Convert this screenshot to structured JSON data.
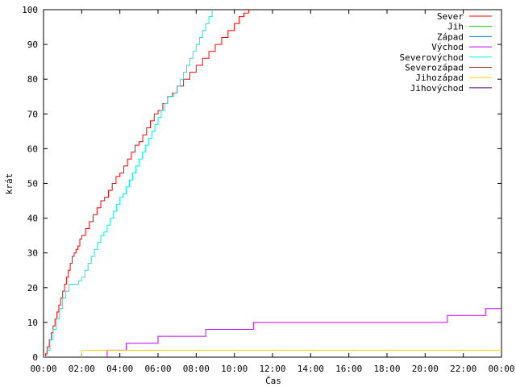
{
  "chart_data": {
    "type": "line",
    "xlabel": "Čas",
    "ylabel": "krát",
    "ylim": [
      0,
      100
    ],
    "xlim_hours": [
      0,
      24
    ],
    "x_tick_labels": [
      "00:00",
      "02:00",
      "04:00",
      "06:00",
      "08:00",
      "10:00",
      "12:00",
      "14:00",
      "16:00",
      "18:00",
      "20:00",
      "22:00",
      "00:00"
    ],
    "y_tick_labels": [
      "0",
      "10",
      "20",
      "30",
      "40",
      "50",
      "60",
      "70",
      "80",
      "90",
      "100"
    ],
    "grid": false,
    "legend_position": "top-right",
    "series": [
      {
        "name": "Sever",
        "color": "#ff0000",
        "points": [
          [
            "00:00",
            0
          ],
          [
            "00:06",
            1
          ],
          [
            "00:12",
            3
          ],
          [
            "00:18",
            5
          ],
          [
            "00:24",
            7
          ],
          [
            "00:30",
            9
          ],
          [
            "00:36",
            11
          ],
          [
            "00:42",
            13
          ],
          [
            "00:48",
            15
          ],
          [
            "00:54",
            17
          ],
          [
            "01:00",
            19
          ],
          [
            "01:06",
            21
          ],
          [
            "01:12",
            23
          ],
          [
            "01:18",
            25
          ],
          [
            "01:24",
            27
          ],
          [
            "01:30",
            29
          ],
          [
            "01:36",
            30
          ],
          [
            "01:42",
            31
          ],
          [
            "01:48",
            32
          ],
          [
            "01:54",
            34
          ],
          [
            "02:00",
            35
          ],
          [
            "02:12",
            37
          ],
          [
            "02:24",
            39
          ],
          [
            "02:36",
            41
          ],
          [
            "02:48",
            43
          ],
          [
            "03:00",
            45
          ],
          [
            "03:12",
            46
          ],
          [
            "03:24",
            48
          ],
          [
            "03:36",
            50
          ],
          [
            "03:48",
            52
          ],
          [
            "04:00",
            53
          ],
          [
            "04:12",
            55
          ],
          [
            "04:24",
            57
          ],
          [
            "04:36",
            59
          ],
          [
            "04:48",
            61
          ],
          [
            "05:00",
            62
          ],
          [
            "05:12",
            64
          ],
          [
            "05:24",
            66
          ],
          [
            "05:36",
            68
          ],
          [
            "05:48",
            70
          ],
          [
            "06:00",
            71
          ],
          [
            "06:15",
            73
          ],
          [
            "06:30",
            75
          ],
          [
            "06:45",
            76
          ],
          [
            "07:00",
            78
          ],
          [
            "07:20",
            80
          ],
          [
            "07:40",
            82
          ],
          [
            "08:00",
            84
          ],
          [
            "08:20",
            86
          ],
          [
            "08:40",
            88
          ],
          [
            "09:00",
            90
          ],
          [
            "09:20",
            92
          ],
          [
            "09:40",
            94
          ],
          [
            "10:00",
            96
          ],
          [
            "10:15",
            98
          ],
          [
            "10:30",
            99
          ],
          [
            "10:45",
            100
          ]
        ]
      },
      {
        "name": "Jih",
        "color": "#00c000",
        "points": []
      },
      {
        "name": "Západ",
        "color": "#0080ff",
        "points": []
      },
      {
        "name": "Východ",
        "color": "#c000ff",
        "points": [
          [
            "03:20",
            0
          ],
          [
            "03:20",
            2
          ],
          [
            "04:20",
            2
          ],
          [
            "04:20",
            4
          ],
          [
            "06:00",
            4
          ],
          [
            "06:00",
            6
          ],
          [
            "08:30",
            6
          ],
          [
            "08:30",
            8
          ],
          [
            "11:00",
            8
          ],
          [
            "11:00",
            10
          ],
          [
            "21:10",
            10
          ],
          [
            "21:10",
            12
          ],
          [
            "23:10",
            12
          ],
          [
            "23:10",
            14
          ],
          [
            "24:00",
            14
          ]
        ]
      },
      {
        "name": "Severovýchod",
        "color": "#00eeee",
        "points": [
          [
            "00:00",
            0
          ],
          [
            "00:10",
            2
          ],
          [
            "00:20",
            5
          ],
          [
            "00:30",
            8
          ],
          [
            "00:40",
            11
          ],
          [
            "00:50",
            14
          ],
          [
            "01:00",
            17
          ],
          [
            "01:10",
            19
          ],
          [
            "01:20",
            21
          ],
          [
            "01:30",
            21
          ],
          [
            "01:40",
            21
          ],
          [
            "01:50",
            22
          ],
          [
            "02:00",
            23
          ],
          [
            "02:10",
            25
          ],
          [
            "02:20",
            27
          ],
          [
            "02:30",
            29
          ],
          [
            "02:40",
            31
          ],
          [
            "02:50",
            33
          ],
          [
            "03:00",
            35
          ],
          [
            "03:10",
            36
          ],
          [
            "03:20",
            38
          ],
          [
            "03:30",
            40
          ],
          [
            "03:40",
            42
          ],
          [
            "03:50",
            44
          ],
          [
            "04:00",
            46
          ],
          [
            "04:10",
            47
          ],
          [
            "04:20",
            49
          ],
          [
            "04:30",
            51
          ],
          [
            "04:40",
            53
          ],
          [
            "04:50",
            55
          ],
          [
            "05:00",
            57
          ],
          [
            "05:10",
            59
          ],
          [
            "05:20",
            61
          ],
          [
            "05:30",
            63
          ],
          [
            "05:40",
            65
          ],
          [
            "05:50",
            67
          ],
          [
            "06:00",
            69
          ],
          [
            "06:10",
            71
          ],
          [
            "06:20",
            73
          ],
          [
            "06:30",
            75
          ],
          [
            "06:40",
            75
          ],
          [
            "06:50",
            76
          ],
          [
            "07:00",
            78
          ],
          [
            "07:10",
            80
          ],
          [
            "07:20",
            82
          ],
          [
            "07:30",
            84
          ],
          [
            "07:40",
            86
          ],
          [
            "07:50",
            88
          ],
          [
            "08:00",
            90
          ],
          [
            "08:10",
            92
          ],
          [
            "08:20",
            94
          ],
          [
            "08:30",
            96
          ],
          [
            "08:40",
            98
          ],
          [
            "08:50",
            100
          ]
        ]
      },
      {
        "name": "Severozápad",
        "color": "#a52a2a",
        "points": []
      },
      {
        "name": "Jihozápad",
        "color": "#ffd700",
        "points": [
          [
            "02:00",
            0
          ],
          [
            "02:00",
            2
          ],
          [
            "24:00",
            2
          ]
        ]
      },
      {
        "name": "Jihovýchod",
        "color": "#4b0082",
        "points": []
      }
    ]
  }
}
